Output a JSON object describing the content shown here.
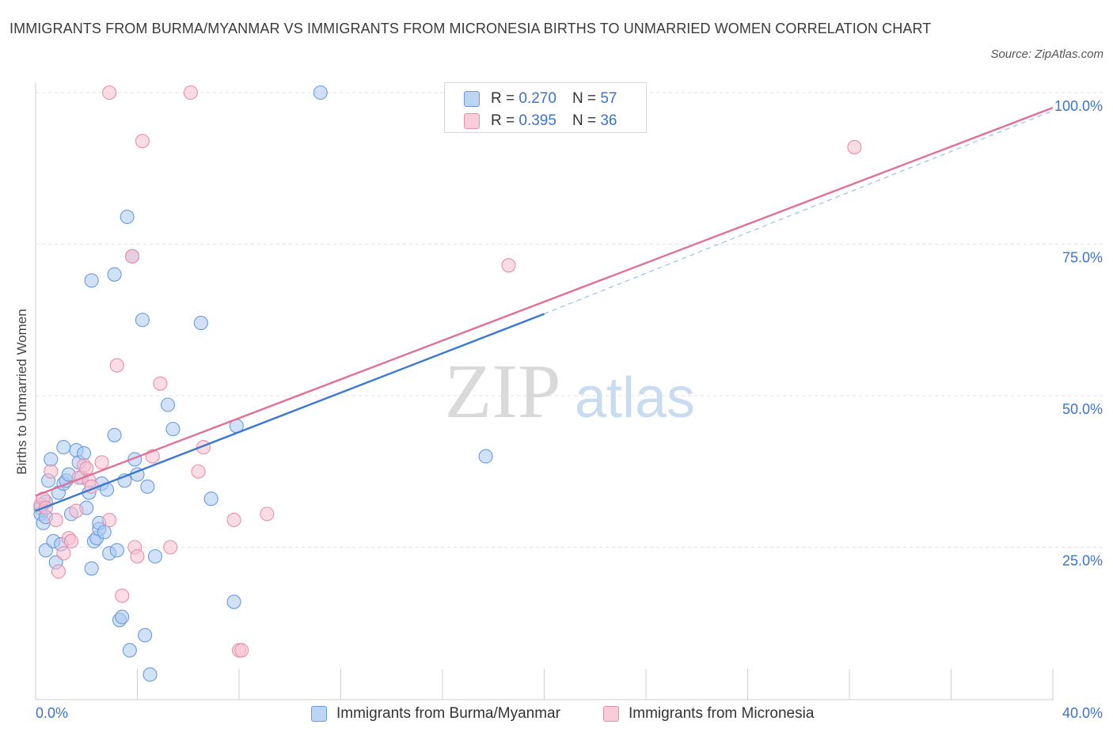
{
  "chart_data": {
    "type": "scatter",
    "title": "IMMIGRANTS FROM BURMA/MYANMAR VS IMMIGRANTS FROM MICRONESIA BIRTHS TO UNMARRIED WOMEN CORRELATION CHART",
    "source": "Source: ZipAtlas.com",
    "ylabel": "Births to Unmarried Women",
    "xlabel": "",
    "xlim": [
      0,
      40
    ],
    "ylim": [
      0,
      100
    ],
    "x_tick_labels": [
      "0.0%",
      "40.0%"
    ],
    "y_ticks": [
      25,
      50,
      75,
      100
    ],
    "y_tick_labels": [
      "25.0%",
      "50.0%",
      "75.0%",
      "100.0%"
    ],
    "grid": true,
    "watermark": "ZIPatlas",
    "legend_position": "top-center",
    "colors": {
      "burma_fill": "#a9c9f2",
      "burma_stroke": "#6b9bdc",
      "burma_line": "#3a78d0",
      "micronesia_fill": "#f6bfd0",
      "micronesia_stroke": "#e98eab",
      "micronesia_line": "#e07096",
      "tick": "#3a73c9"
    },
    "stats": [
      {
        "series": "Immigrants from Burma/Myanmar",
        "r_label": "R =",
        "r": "0.270",
        "n_label": "N =",
        "n": "57"
      },
      {
        "series": "Immigrants from Micronesia",
        "r_label": "R =",
        "r": "0.395",
        "n_label": "N =",
        "n": "36"
      }
    ],
    "series": [
      {
        "name": "Immigrants from Burma/Myanmar",
        "trend": {
          "x0": 0,
          "y0": 31.0,
          "x1": 20,
          "y1": 63.5,
          "dash_to_x": 40,
          "dash_to_y": 97
        },
        "points": [
          [
            0.2,
            31.5
          ],
          [
            0.2,
            30.5
          ],
          [
            0.3,
            29
          ],
          [
            0.4,
            30
          ],
          [
            0.4,
            32.5
          ],
          [
            0.4,
            24.5
          ],
          [
            0.5,
            36
          ],
          [
            0.6,
            39.5
          ],
          [
            0.7,
            26
          ],
          [
            0.8,
            22.5
          ],
          [
            0.9,
            34
          ],
          [
            1.0,
            25.5
          ],
          [
            1.1,
            35.5
          ],
          [
            1.1,
            41.5
          ],
          [
            1.2,
            36
          ],
          [
            1.3,
            37
          ],
          [
            1.4,
            30.5
          ],
          [
            1.6,
            41
          ],
          [
            1.7,
            39
          ],
          [
            1.8,
            36.5
          ],
          [
            1.9,
            40.5
          ],
          [
            2.0,
            31.5
          ],
          [
            2.1,
            34
          ],
          [
            2.2,
            21.5
          ],
          [
            2.2,
            69
          ],
          [
            2.3,
            26
          ],
          [
            2.4,
            26.5
          ],
          [
            2.5,
            28
          ],
          [
            2.5,
            29
          ],
          [
            2.6,
            35.5
          ],
          [
            2.7,
            27.5
          ],
          [
            2.8,
            34.5
          ],
          [
            2.9,
            24
          ],
          [
            3.1,
            70
          ],
          [
            3.1,
            43.5
          ],
          [
            3.2,
            24.5
          ],
          [
            3.3,
            13
          ],
          [
            3.4,
            13.5
          ],
          [
            3.5,
            36
          ],
          [
            3.6,
            79.5
          ],
          [
            3.7,
            8
          ],
          [
            3.8,
            73
          ],
          [
            3.9,
            39.5
          ],
          [
            4.0,
            37
          ],
          [
            4.2,
            62.5
          ],
          [
            4.3,
            10.5
          ],
          [
            4.4,
            35
          ],
          [
            4.5,
            4
          ],
          [
            4.7,
            23.5
          ],
          [
            5.2,
            48.5
          ],
          [
            5.4,
            44.5
          ],
          [
            6.5,
            62
          ],
          [
            6.9,
            33
          ],
          [
            7.8,
            16
          ],
          [
            7.9,
            45
          ],
          [
            11.2,
            100
          ],
          [
            17.7,
            40
          ]
        ]
      },
      {
        "name": "Immigrants from Micronesia",
        "trend": {
          "x0": 0,
          "y0": 33.5,
          "x1": 40,
          "y1": 97.5
        },
        "points": [
          [
            0.2,
            32
          ],
          [
            0.3,
            33
          ],
          [
            0.4,
            31.5
          ],
          [
            0.6,
            37.5
          ],
          [
            0.8,
            29.5
          ],
          [
            0.9,
            21
          ],
          [
            1.1,
            24
          ],
          [
            1.3,
            26.5
          ],
          [
            1.4,
            26
          ],
          [
            1.6,
            31
          ],
          [
            1.7,
            36.5
          ],
          [
            1.9,
            38.5
          ],
          [
            2.0,
            38
          ],
          [
            2.1,
            36
          ],
          [
            2.2,
            35
          ],
          [
            2.6,
            39
          ],
          [
            2.9,
            29.5
          ],
          [
            2.9,
            100
          ],
          [
            3.2,
            55
          ],
          [
            3.4,
            17
          ],
          [
            3.8,
            73
          ],
          [
            3.9,
            25
          ],
          [
            4.0,
            23.5
          ],
          [
            4.2,
            92
          ],
          [
            4.6,
            40
          ],
          [
            4.9,
            52
          ],
          [
            5.3,
            25
          ],
          [
            6.1,
            100
          ],
          [
            6.4,
            37.5
          ],
          [
            6.6,
            41.5
          ],
          [
            7.8,
            29.5
          ],
          [
            8.0,
            8
          ],
          [
            8.1,
            8
          ],
          [
            9.1,
            30.5
          ],
          [
            18.6,
            71.5
          ],
          [
            32.2,
            91
          ]
        ]
      }
    ]
  },
  "legend_bottom": [
    {
      "label": "Immigrants from Burma/Myanmar"
    },
    {
      "label": "Immigrants from Micronesia"
    }
  ]
}
